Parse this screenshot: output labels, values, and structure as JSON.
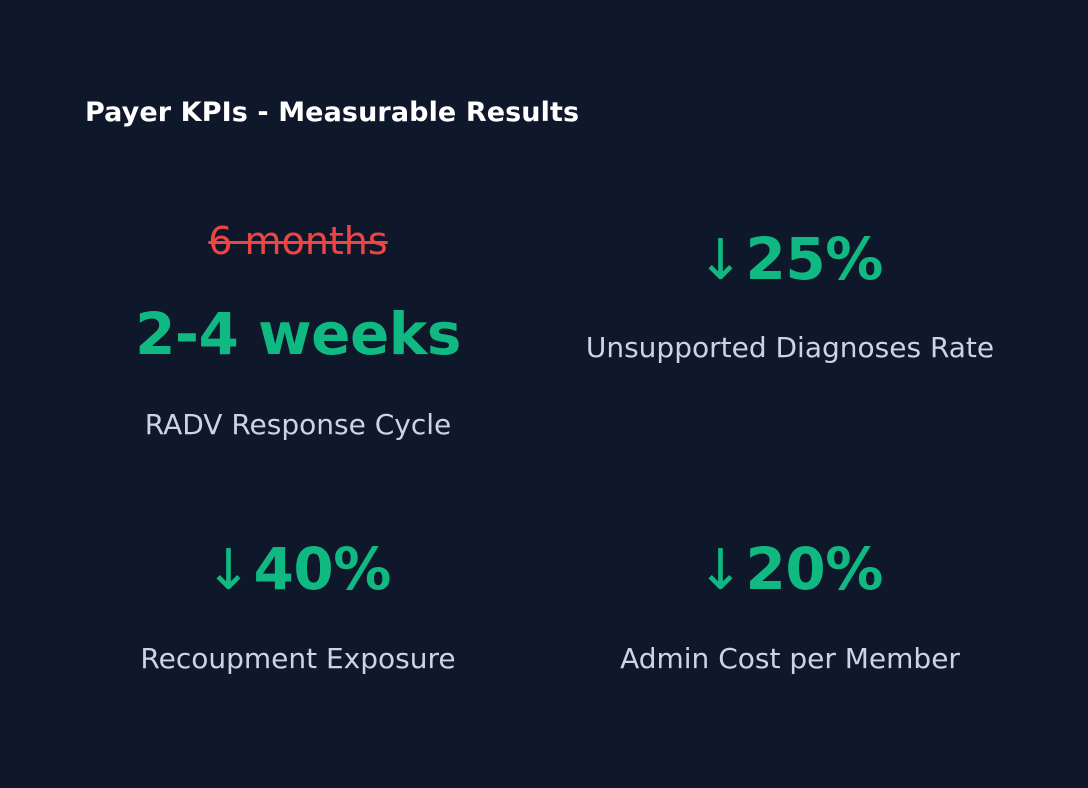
{
  "header": {
    "title": "Payer KPIs - Measurable Results"
  },
  "colors": {
    "background": "#0f172a",
    "accent_green": "#10b981",
    "strike_red": "#ef4444",
    "caption_text": "#cbd5e1",
    "title_text": "#ffffff"
  },
  "kpis": [
    {
      "previous_value": "6 months",
      "value": "2-4 weeks",
      "label": "RADV Response Cycle"
    },
    {
      "direction_icon": "arrow-down-icon",
      "arrow": "↓",
      "value": "25%",
      "label": "Unsupported Diagnoses Rate"
    },
    {
      "direction_icon": "arrow-down-icon",
      "arrow": "↓",
      "value": "40%",
      "label": "Recoupment Exposure"
    },
    {
      "direction_icon": "arrow-down-icon",
      "arrow": "↓",
      "value": "20%",
      "label": "Admin Cost per Member"
    }
  ]
}
